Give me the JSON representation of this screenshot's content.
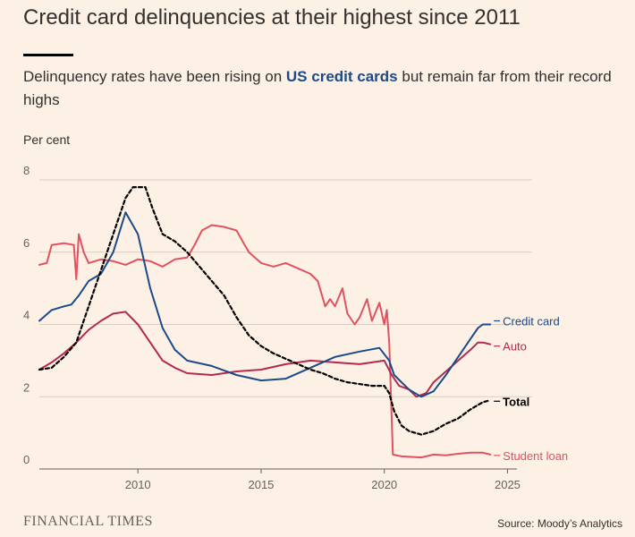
{
  "header": {
    "title": "Credit card delinquencies at their highest since 2011",
    "subtitle_before": "Delinquency rates have been rising on ",
    "subtitle_highlight": "US credit cards",
    "subtitle_after": " but remain far from their record highs",
    "units": "Per cent"
  },
  "footer": {
    "brand": "FINANCIAL TIMES",
    "source": "Source: Moody’s Analytics"
  },
  "colors": {
    "background": "#fdf1e5",
    "credit_card": "#1b4a8a",
    "auto": "#b3294f",
    "total": "#000000",
    "student_loan": "#e0525f",
    "grid": "#d9cdc1"
  },
  "chart_data": {
    "type": "line",
    "title": "Credit card delinquencies at their highest since 2011",
    "xlabel": "",
    "ylabel": "Per cent",
    "xlim": [
      2006,
      2026
    ],
    "ylim": [
      0,
      8
    ],
    "x_ticks": [
      2010,
      2015,
      2020,
      2025
    ],
    "y_ticks": [
      0,
      2,
      4,
      6,
      8
    ],
    "grid": true,
    "series": [
      {
        "name": "Credit card",
        "key": "credit_card",
        "style": "solid",
        "points": [
          [
            2006.0,
            4.1
          ],
          [
            2006.5,
            4.4
          ],
          [
            2007.0,
            4.5
          ],
          [
            2007.3,
            4.55
          ],
          [
            2007.6,
            4.8
          ],
          [
            2008.0,
            5.2
          ],
          [
            2008.5,
            5.4
          ],
          [
            2009.0,
            6.0
          ],
          [
            2009.5,
            7.1
          ],
          [
            2010.0,
            6.5
          ],
          [
            2010.5,
            5.0
          ],
          [
            2011.0,
            3.9
          ],
          [
            2011.5,
            3.3
          ],
          [
            2012.0,
            3.0
          ],
          [
            2013.0,
            2.85
          ],
          [
            2014.0,
            2.6
          ],
          [
            2015.0,
            2.45
          ],
          [
            2016.0,
            2.5
          ],
          [
            2017.0,
            2.8
          ],
          [
            2018.0,
            3.1
          ],
          [
            2019.0,
            3.25
          ],
          [
            2019.8,
            3.35
          ],
          [
            2020.2,
            3.0
          ],
          [
            2020.4,
            2.6
          ],
          [
            2020.7,
            2.4
          ],
          [
            2021.0,
            2.2
          ],
          [
            2021.5,
            2.0
          ],
          [
            2022.0,
            2.15
          ],
          [
            2022.5,
            2.6
          ],
          [
            2023.0,
            3.1
          ],
          [
            2023.5,
            3.6
          ],
          [
            2023.8,
            3.9
          ],
          [
            2024.0,
            4.0
          ],
          [
            2024.3,
            4.0
          ]
        ]
      },
      {
        "name": "Auto",
        "key": "auto",
        "style": "solid",
        "points": [
          [
            2006.0,
            2.75
          ],
          [
            2006.5,
            2.95
          ],
          [
            2007.0,
            3.2
          ],
          [
            2007.5,
            3.5
          ],
          [
            2008.0,
            3.85
          ],
          [
            2008.5,
            4.1
          ],
          [
            2009.0,
            4.3
          ],
          [
            2009.5,
            4.35
          ],
          [
            2010.0,
            4.0
          ],
          [
            2010.5,
            3.5
          ],
          [
            2011.0,
            3.0
          ],
          [
            2011.5,
            2.8
          ],
          [
            2012.0,
            2.65
          ],
          [
            2013.0,
            2.6
          ],
          [
            2014.0,
            2.7
          ],
          [
            2015.0,
            2.75
          ],
          [
            2016.0,
            2.9
          ],
          [
            2017.0,
            3.0
          ],
          [
            2018.0,
            2.95
          ],
          [
            2019.0,
            2.9
          ],
          [
            2020.0,
            3.0
          ],
          [
            2020.3,
            2.6
          ],
          [
            2020.6,
            2.3
          ],
          [
            2021.0,
            2.2
          ],
          [
            2021.3,
            2.0
          ],
          [
            2021.7,
            2.1
          ],
          [
            2022.0,
            2.4
          ],
          [
            2022.5,
            2.7
          ],
          [
            2023.0,
            3.0
          ],
          [
            2023.5,
            3.3
          ],
          [
            2023.8,
            3.5
          ],
          [
            2024.0,
            3.5
          ],
          [
            2024.3,
            3.45
          ]
        ]
      },
      {
        "name": "Total",
        "key": "total",
        "style": "dashed",
        "points": [
          [
            2006.0,
            2.75
          ],
          [
            2006.5,
            2.8
          ],
          [
            2007.0,
            3.1
          ],
          [
            2007.5,
            3.5
          ],
          [
            2008.0,
            4.5
          ],
          [
            2008.5,
            5.5
          ],
          [
            2009.0,
            6.5
          ],
          [
            2009.5,
            7.5
          ],
          [
            2009.8,
            7.8
          ],
          [
            2010.3,
            7.8
          ],
          [
            2010.6,
            7.2
          ],
          [
            2011.0,
            6.5
          ],
          [
            2011.5,
            6.3
          ],
          [
            2012.0,
            6.0
          ],
          [
            2012.5,
            5.6
          ],
          [
            2013.0,
            5.2
          ],
          [
            2013.5,
            4.8
          ],
          [
            2014.0,
            4.2
          ],
          [
            2014.5,
            3.7
          ],
          [
            2015.0,
            3.4
          ],
          [
            2015.5,
            3.2
          ],
          [
            2016.0,
            3.05
          ],
          [
            2016.5,
            2.9
          ],
          [
            2017.0,
            2.75
          ],
          [
            2017.5,
            2.65
          ],
          [
            2018.0,
            2.5
          ],
          [
            2018.5,
            2.4
          ],
          [
            2019.0,
            2.35
          ],
          [
            2019.5,
            2.3
          ],
          [
            2020.0,
            2.3
          ],
          [
            2020.2,
            2.1
          ],
          [
            2020.4,
            1.6
          ],
          [
            2020.7,
            1.2
          ],
          [
            2021.0,
            1.05
          ],
          [
            2021.5,
            0.95
          ],
          [
            2022.0,
            1.05
          ],
          [
            2022.5,
            1.25
          ],
          [
            2023.0,
            1.4
          ],
          [
            2023.5,
            1.65
          ],
          [
            2024.0,
            1.85
          ],
          [
            2024.3,
            1.9
          ]
        ]
      },
      {
        "name": "Student loan",
        "key": "student_loan",
        "style": "solid",
        "points": [
          [
            2006.0,
            5.65
          ],
          [
            2006.3,
            5.7
          ],
          [
            2006.5,
            6.2
          ],
          [
            2007.0,
            6.25
          ],
          [
            2007.4,
            6.2
          ],
          [
            2007.5,
            5.25
          ],
          [
            2007.6,
            6.5
          ],
          [
            2007.8,
            6.0
          ],
          [
            2008.0,
            5.7
          ],
          [
            2008.5,
            5.8
          ],
          [
            2009.0,
            5.75
          ],
          [
            2009.5,
            5.65
          ],
          [
            2010.0,
            5.8
          ],
          [
            2010.5,
            5.75
          ],
          [
            2011.0,
            5.6
          ],
          [
            2011.5,
            5.8
          ],
          [
            2012.0,
            5.85
          ],
          [
            2012.3,
            6.2
          ],
          [
            2012.6,
            6.6
          ],
          [
            2013.0,
            6.75
          ],
          [
            2013.5,
            6.7
          ],
          [
            2014.0,
            6.6
          ],
          [
            2014.5,
            6.0
          ],
          [
            2015.0,
            5.7
          ],
          [
            2015.5,
            5.6
          ],
          [
            2016.0,
            5.7
          ],
          [
            2016.5,
            5.55
          ],
          [
            2017.0,
            5.4
          ],
          [
            2017.3,
            5.2
          ],
          [
            2017.6,
            4.5
          ],
          [
            2017.8,
            4.7
          ],
          [
            2018.0,
            4.5
          ],
          [
            2018.3,
            5.0
          ],
          [
            2018.5,
            4.3
          ],
          [
            2018.8,
            4.0
          ],
          [
            2019.0,
            4.2
          ],
          [
            2019.3,
            4.7
          ],
          [
            2019.5,
            4.1
          ],
          [
            2019.8,
            4.6
          ],
          [
            2020.0,
            4.0
          ],
          [
            2020.1,
            4.4
          ],
          [
            2020.2,
            3.5
          ],
          [
            2020.35,
            0.4
          ],
          [
            2020.7,
            0.35
          ],
          [
            2021.5,
            0.32
          ],
          [
            2022.0,
            0.4
          ],
          [
            2022.5,
            0.38
          ],
          [
            2023.0,
            0.42
          ],
          [
            2023.5,
            0.45
          ],
          [
            2024.0,
            0.45
          ],
          [
            2024.3,
            0.4
          ]
        ]
      }
    ],
    "labels": {
      "credit_card": "Credit card",
      "auto": "Auto",
      "total": "Total",
      "student_loan": "Student loan"
    }
  }
}
